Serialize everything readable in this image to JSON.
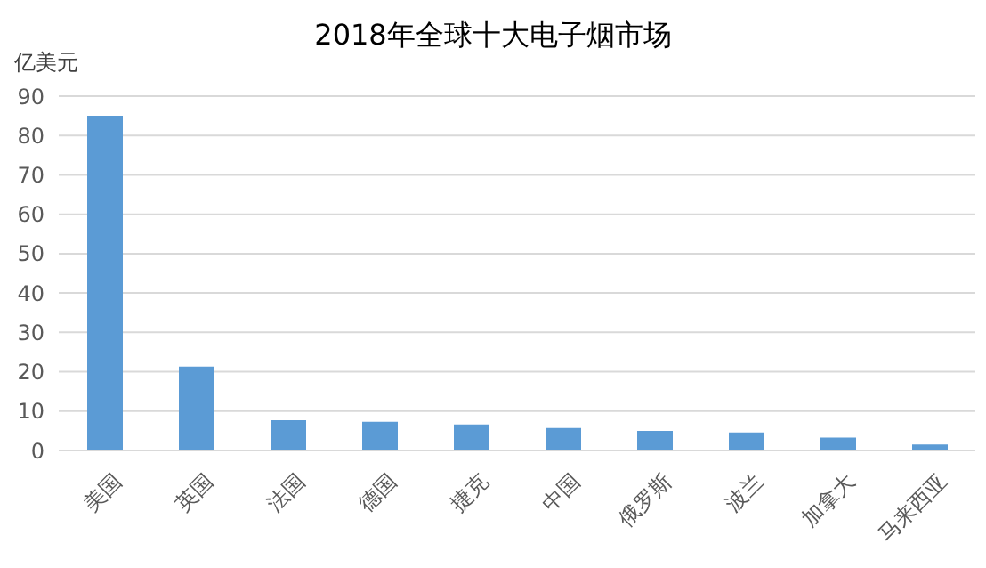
{
  "chart_data": {
    "type": "bar",
    "title": "2018年全球十大电子烟市场",
    "ylabel": "亿美元",
    "categories": [
      "美国",
      "英国",
      "法国",
      "德国",
      "捷克",
      "中国",
      "俄罗斯",
      "波兰",
      "加拿大",
      "马来西亚"
    ],
    "values": [
      85,
      21.3,
      7.7,
      7.3,
      6.6,
      5.7,
      5,
      4.6,
      3.3,
      1.5
    ],
    "color": "#5b9bd5",
    "ylim": [
      0,
      90
    ],
    "yticks": [
      0,
      10,
      20,
      30,
      40,
      50,
      60,
      70,
      80,
      90
    ],
    "grid": "y"
  }
}
